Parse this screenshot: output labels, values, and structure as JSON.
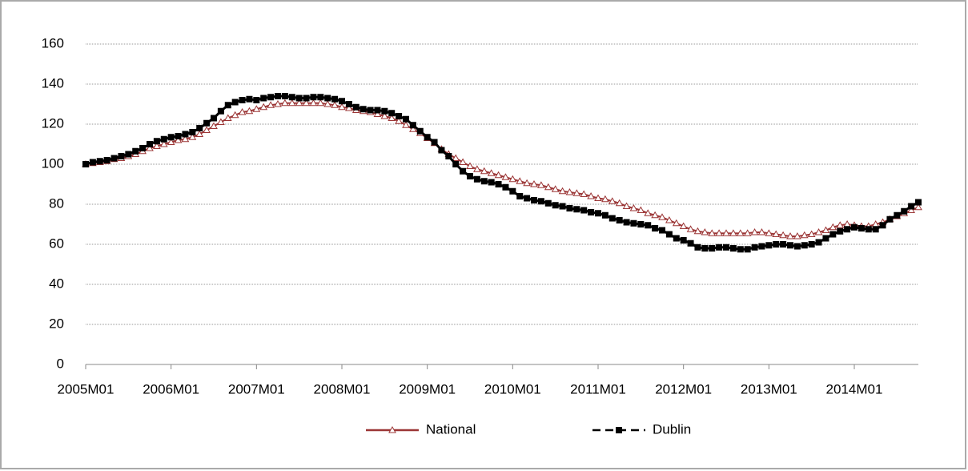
{
  "chart_data": {
    "type": "line",
    "categories": [
      "2005M01",
      null,
      null,
      null,
      null,
      null,
      null,
      null,
      null,
      null,
      null,
      null,
      "2006M01",
      null,
      null,
      null,
      null,
      null,
      null,
      null,
      null,
      null,
      null,
      null,
      "2007M01",
      null,
      null,
      null,
      null,
      null,
      null,
      null,
      null,
      null,
      null,
      null,
      "2008M01",
      null,
      null,
      null,
      null,
      null,
      null,
      null,
      null,
      null,
      null,
      null,
      "2009M01",
      null,
      null,
      null,
      null,
      null,
      null,
      null,
      null,
      null,
      null,
      null,
      "2010M01",
      null,
      null,
      null,
      null,
      null,
      null,
      null,
      null,
      null,
      null,
      null,
      "2011M01",
      null,
      null,
      null,
      null,
      null,
      null,
      null,
      null,
      null,
      null,
      null,
      "2012M01",
      null,
      null,
      null,
      null,
      null,
      null,
      null,
      null,
      null,
      null,
      null,
      "2013M01",
      null,
      null,
      null,
      null,
      null,
      null,
      null,
      null,
      null,
      null,
      null,
      "2014M01",
      null,
      null,
      null,
      null,
      null,
      null,
      null,
      null,
      null
    ],
    "series": [
      {
        "name": "National",
        "color": "#9b3535",
        "marker": "triangle",
        "values": [
          100,
          100.5,
          101,
          101.5,
          102.5,
          103,
          104,
          105,
          106.5,
          108,
          109,
          110,
          111,
          112,
          112.5,
          113.5,
          115,
          117,
          119,
          121,
          123,
          124.5,
          126,
          126.5,
          127.5,
          128.5,
          129.5,
          130,
          130.5,
          130.5,
          130.5,
          130.5,
          130.5,
          130.5,
          130,
          129.5,
          128.5,
          128,
          127,
          126.5,
          126,
          125,
          124,
          123,
          121.5,
          119.5,
          117.5,
          115.5,
          113,
          110.5,
          107.5,
          105,
          103,
          101,
          99,
          97.5,
          96.5,
          95.5,
          94.5,
          93.5,
          92.5,
          91.5,
          90.5,
          90,
          89.5,
          88.5,
          87.5,
          86.5,
          86,
          85.5,
          85,
          84,
          83,
          82.5,
          81.5,
          80.5,
          79,
          78,
          77,
          75.5,
          74.5,
          73.5,
          72,
          70.5,
          69,
          67.5,
          66.5,
          66,
          65.5,
          65.5,
          65.5,
          65.5,
          65.5,
          65.5,
          66,
          66,
          65.5,
          65,
          64.5,
          64,
          64,
          64.5,
          65,
          66,
          67,
          68.5,
          69.5,
          70,
          69.5,
          69,
          69,
          70,
          71,
          72.5,
          74,
          75.5,
          77,
          78.5
        ]
      },
      {
        "name": "Dublin",
        "color": "#000000",
        "marker": "square",
        "values": [
          100,
          101,
          101.5,
          102,
          103,
          104,
          105,
          106.5,
          108,
          110,
          111.5,
          112.5,
          113.5,
          114,
          115,
          116,
          118,
          120.5,
          123,
          126.5,
          129.5,
          131,
          132,
          132.5,
          132,
          133,
          133.5,
          134,
          134,
          133.5,
          133,
          133,
          133.5,
          133.5,
          133,
          132.5,
          131.5,
          130,
          128.5,
          127.5,
          127,
          127,
          126.5,
          125.5,
          124,
          122.5,
          119.5,
          116.5,
          113.5,
          111,
          107,
          104,
          100,
          96.5,
          94,
          92.5,
          91.5,
          91,
          90,
          88.5,
          86.5,
          84,
          83,
          82,
          81.5,
          80.5,
          79.5,
          79,
          78,
          77.5,
          77,
          76,
          75.5,
          74.5,
          73,
          72,
          71,
          70.5,
          70,
          69.5,
          68,
          67,
          65,
          63,
          62,
          60.5,
          58.5,
          58,
          58,
          58.5,
          58.5,
          58,
          57.5,
          57.5,
          58.5,
          59,
          59.5,
          60,
          60,
          59.5,
          59,
          59.5,
          60,
          61,
          63,
          65,
          66.5,
          67.5,
          68.5,
          68,
          67.5,
          67.5,
          69.5,
          72.5,
          74.5,
          76.5,
          79,
          81
        ]
      }
    ],
    "ylim": [
      0,
      160
    ],
    "yticks": [
      0,
      20,
      40,
      60,
      80,
      100,
      120,
      140,
      160
    ],
    "grid": true,
    "legend": "bottom"
  }
}
